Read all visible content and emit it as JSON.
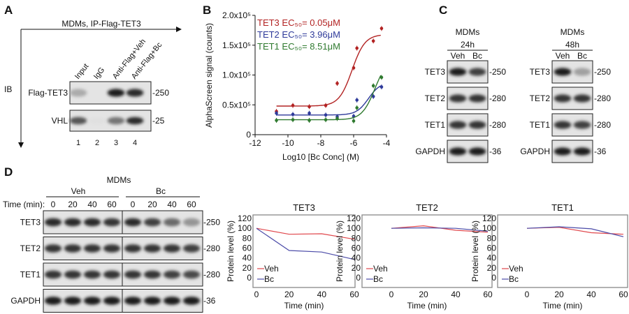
{
  "panels": {
    "a": "A",
    "b": "B",
    "c": "C",
    "d": "D"
  },
  "panel_a": {
    "title": "MDMs, IP-Flag-TET3",
    "axis_label": "IB",
    "lanes": [
      "Input",
      "IgG",
      "Anti-Flag+Veh",
      "Anti-Flag+Bc"
    ],
    "lane_numbers": [
      "1",
      "2",
      "3",
      "4"
    ],
    "blots": [
      {
        "label": "Flag-TET3",
        "marker": "-250",
        "bands": [
          0.3,
          0.0,
          0.95,
          0.9
        ]
      },
      {
        "label": "VHL",
        "marker": "-25",
        "bands": [
          0.7,
          0.05,
          0.55,
          0.9
        ]
      }
    ]
  },
  "panel_c": {
    "groups": [
      {
        "title": "MDMs",
        "time": "24h",
        "conditions": [
          "Veh",
          "Bc"
        ],
        "blots": [
          {
            "label": "TET3",
            "marker": "-250",
            "bands": [
              0.95,
              0.8
            ]
          },
          {
            "label": "TET2",
            "marker": "-280",
            "bands": [
              0.85,
              0.85
            ]
          },
          {
            "label": "TET1",
            "marker": "-280",
            "bands": [
              0.85,
              0.85
            ]
          },
          {
            "label": "GAPDH",
            "marker": "-36",
            "bands": [
              0.95,
              0.95
            ]
          }
        ]
      },
      {
        "title": "MDMs",
        "time": "48h",
        "conditions": [
          "Veh",
          "Bc"
        ],
        "blots": [
          {
            "label": "TET3",
            "marker": "-250",
            "bands": [
              0.95,
              0.35
            ]
          },
          {
            "label": "TET2",
            "marker": "-280",
            "bands": [
              0.85,
              0.85
            ]
          },
          {
            "label": "TET1",
            "marker": "-280",
            "bands": [
              0.85,
              0.8
            ]
          },
          {
            "label": "GAPDH",
            "marker": "-36",
            "bands": [
              0.95,
              0.95
            ]
          }
        ]
      }
    ]
  },
  "panel_d": {
    "title": "MDMs",
    "conditions": [
      "Veh",
      "Bc"
    ],
    "time_label": "Time (min):",
    "times": [
      "0",
      "20",
      "40",
      "60",
      "0",
      "20",
      "40",
      "60"
    ],
    "blots": [
      {
        "label": "TET3",
        "marker": "-250",
        "bands": [
          0.9,
          0.9,
          0.9,
          0.85,
          0.9,
          0.8,
          0.6,
          0.4
        ]
      },
      {
        "label": "TET2",
        "marker": "-280",
        "bands": [
          0.85,
          0.85,
          0.85,
          0.85,
          0.85,
          0.85,
          0.85,
          0.8
        ]
      },
      {
        "label": "TET1",
        "marker": "-280",
        "bands": [
          0.85,
          0.85,
          0.85,
          0.85,
          0.85,
          0.85,
          0.8,
          0.75
        ]
      },
      {
        "label": "GAPDH",
        "marker": "-36",
        "bands": [
          0.95,
          0.95,
          0.95,
          0.95,
          0.95,
          0.95,
          0.95,
          0.95
        ]
      }
    ]
  },
  "colors": {
    "tet3": "#b22222",
    "tet2": "#2e3a9a",
    "tet1": "#2f7a2f",
    "veh": "#e0474c",
    "bc": "#4b4ba8"
  },
  "chart_data": [
    {
      "type": "scatter",
      "xlabel": "Log10 [Bc Conc] (M)",
      "ylabel": "AlphaScreen signal (counts)",
      "xlim": [
        -12,
        -4
      ],
      "ylim": [
        0,
        200000
      ],
      "xticks": [
        "-12",
        "-10",
        "-8",
        "-6",
        "-4"
      ],
      "yticks": [
        "0",
        "0.5x10⁵",
        "1.0x10⁵",
        "1.5x10⁵",
        "2.0x10⁵"
      ],
      "legend_position": "top-left",
      "series": [
        {
          "name": "TET3 EC₅₀= 0.05μM",
          "color": "#b22222",
          "x": [
            -10.7,
            -9.7,
            -8.7,
            -7.7,
            -7,
            -6,
            -5.8,
            -4.8,
            -4.3
          ],
          "y": [
            39000,
            49000,
            47000,
            49000,
            86000,
            112000,
            145000,
            157000,
            178000
          ]
        },
        {
          "name": "TET2 EC₅₀= 3.96μM",
          "color": "#2e3a9a",
          "x": [
            -10.7,
            -9.7,
            -8.7,
            -7.7,
            -7,
            -6,
            -5.8,
            -4.8,
            -4.3
          ],
          "y": [
            36000,
            34000,
            36000,
            33000,
            30000,
            31000,
            58000,
            64000,
            80000
          ]
        },
        {
          "name": "TET1 EC₅₀= 8.51μM",
          "color": "#2f7a2f",
          "x": [
            -10.7,
            -9.7,
            -8.7,
            -7.7,
            -7,
            -6,
            -5.8,
            -4.8,
            -4.3
          ],
          "y": [
            24000,
            25000,
            24000,
            25000,
            27000,
            23000,
            45000,
            82000,
            96000
          ]
        }
      ]
    },
    {
      "type": "line",
      "title": "TET3",
      "xlabel": "Time (min)",
      "ylabel": "Protein level (%)",
      "x": [
        0,
        20,
        40,
        60
      ],
      "xlim": [
        0,
        60
      ],
      "ylim": [
        0,
        120
      ],
      "xticks": [
        "0",
        "20",
        "40",
        "60"
      ],
      "yticks": [
        "0",
        "20",
        "40",
        "60",
        "80",
        "100",
        "120"
      ],
      "legend_position": "bottom-left",
      "series": [
        {
          "name": "Veh",
          "values": [
            100,
            88,
            89,
            78
          ]
        },
        {
          "name": "Bc",
          "values": [
            100,
            55,
            52,
            37
          ]
        }
      ]
    },
    {
      "type": "line",
      "title": "TET2",
      "xlabel": "Time (min)",
      "ylabel": "Protein level (%)",
      "x": [
        0,
        20,
        40,
        60
      ],
      "xlim": [
        0,
        60
      ],
      "ylim": [
        0,
        120
      ],
      "xticks": [
        "0",
        "20",
        "40",
        "60"
      ],
      "yticks": [
        "0",
        "20",
        "40",
        "60",
        "80",
        "100",
        "120"
      ],
      "legend_position": "bottom-left",
      "series": [
        {
          "name": "Veh",
          "values": [
            100,
            105,
            96,
            92
          ]
        },
        {
          "name": "Bc",
          "values": [
            100,
            101,
            100,
            94
          ]
        }
      ]
    },
    {
      "type": "line",
      "title": "TET1",
      "xlabel": "Time (min)",
      "ylabel": "Protein level (%)",
      "x": [
        0,
        20,
        40,
        60
      ],
      "xlim": [
        0,
        60
      ],
      "ylim": [
        0,
        120
      ],
      "xticks": [
        "0",
        "20",
        "40",
        "60"
      ],
      "yticks": [
        "0",
        "20",
        "40",
        "60",
        "80",
        "100",
        "120"
      ],
      "legend_position": "bottom-left",
      "series": [
        {
          "name": "Veh",
          "values": [
            100,
            102,
            91,
            88
          ]
        },
        {
          "name": "Bc",
          "values": [
            100,
            103,
            99,
            83
          ]
        }
      ]
    }
  ]
}
